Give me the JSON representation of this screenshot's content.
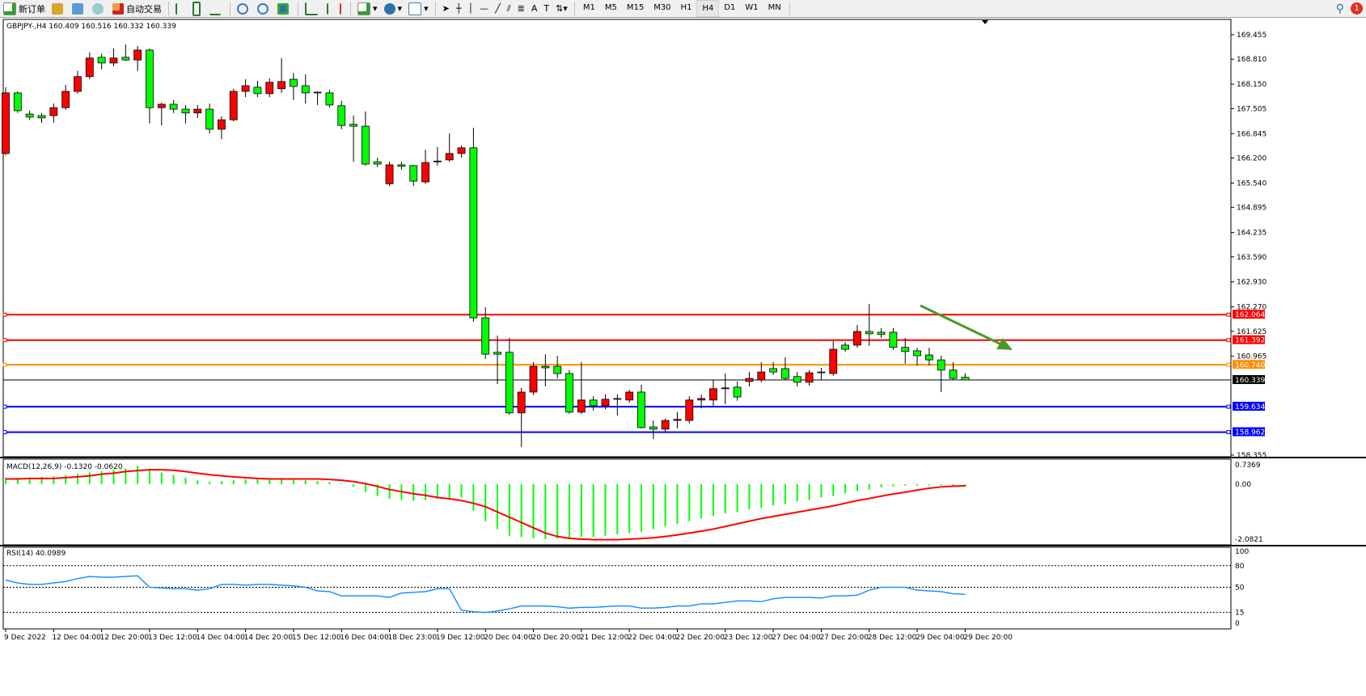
{
  "toolbar": {
    "new_order": "新订单",
    "auto_trading": "自动交易",
    "timeframes": [
      "M1",
      "M5",
      "M15",
      "M30",
      "H1",
      "H4",
      "D1",
      "W1",
      "MN"
    ],
    "active_timeframe": "H4",
    "notification_count": "1",
    "icons": [
      "new-order-icon",
      "market-watch-icon",
      "data-window-icon",
      "signals-icon",
      "auto-trading-icon",
      "bar-chart-icon",
      "candlestick-icon",
      "line-chart-icon",
      "zoom-in-icon",
      "zoom-out-icon",
      "tile-windows-icon",
      "auto-scroll-icon",
      "chart-shift-icon",
      "indicators-icon",
      "periods-icon",
      "templates-icon",
      "cursor-icon",
      "crosshair-icon",
      "vertical-line-icon",
      "horizontal-line-icon",
      "trendline-icon",
      "equidistant-channel-icon",
      "fibonacci-icon",
      "text-icon",
      "text-label-icon",
      "arrows-icon",
      "search-icon",
      "notification-icon"
    ]
  },
  "chart": {
    "header": "GBPJPY-,H4  160.409 160.516 160.332 160.339",
    "bull_color": "#ff0000",
    "bear_color": "#00ff00",
    "price_ticks": [
      "169.455",
      "168.810",
      "168.150",
      "167.505",
      "166.845",
      "166.200",
      "165.540",
      "164.895",
      "164.235",
      "163.590",
      "162.930",
      "162.270",
      "161.625",
      "160.965",
      "158.355"
    ],
    "price_range": [
      158.355,
      169.455
    ],
    "levels": [
      {
        "price": "162.064",
        "color": "#ff0000"
      },
      {
        "price": "161.392",
        "color": "#ff0000"
      },
      {
        "price": "160.740",
        "color": "#ff8c00"
      },
      {
        "price": "159.634",
        "color": "#0000ff"
      },
      {
        "price": "158.962",
        "color": "#0000ff"
      }
    ],
    "bid": {
      "price": "160.339",
      "color": "#000000"
    },
    "arrow_color": "#4a9a2a",
    "time_labels": [
      "9 Dec 2022",
      "12 Dec 04:00",
      "12 Dec 20:00",
      "13 Dec 12:00",
      "14 Dec 04:00",
      "14 Dec 20:00",
      "15 Dec 12:00",
      "16 Dec 04:00",
      "18 Dec 23:00",
      "19 Dec 12:00",
      "20 Dec 04:00",
      "20 Dec 20:00",
      "21 Dec 12:00",
      "22 Dec 04:00",
      "22 Dec 20:00",
      "23 Dec 12:00",
      "27 Dec 04:00",
      "27 Dec 20:00",
      "28 Dec 12:00",
      "29 Dec 04:00",
      "29 Dec 20:00"
    ]
  },
  "macd": {
    "label": "MACD(12,26,9) -0.1320 -0.0620",
    "ticks": [
      "0.7369",
      "0.00",
      "-2.0821"
    ],
    "range": [
      -2.0821,
      0.7369
    ],
    "hist_color": "#00ff00",
    "signal_color": "#ff0000"
  },
  "rsi": {
    "label": "RSI(14) 40.0989",
    "ticks": [
      "100",
      "80",
      "50",
      "15",
      "0"
    ],
    "levels": [
      80,
      50,
      15
    ],
    "color": "#1e90ff"
  },
  "chart_data": {
    "type": "candlestick",
    "ohlc": [
      [
        166.32,
        168.07,
        166.27,
        167.92
      ],
      [
        167.92,
        167.96,
        167.39,
        167.45
      ],
      [
        167.36,
        167.45,
        167.21,
        167.28
      ],
      [
        167.32,
        167.39,
        167.13,
        167.26
      ],
      [
        167.32,
        167.64,
        167.13,
        167.53
      ],
      [
        167.53,
        168.13,
        167.47,
        167.96
      ],
      [
        167.96,
        168.5,
        167.9,
        168.35
      ],
      [
        168.35,
        168.99,
        168.28,
        168.84
      ],
      [
        168.86,
        168.96,
        168.54,
        168.71
      ],
      [
        168.71,
        169.09,
        168.62,
        168.84
      ],
      [
        168.86,
        169.2,
        168.77,
        168.79
      ],
      [
        168.79,
        169.16,
        168.5,
        169.05
      ],
      [
        169.05,
        169.09,
        167.11,
        167.53
      ],
      [
        167.53,
        167.66,
        167.06,
        167.62
      ],
      [
        167.62,
        167.73,
        167.39,
        167.49
      ],
      [
        167.49,
        167.6,
        167.11,
        167.39
      ],
      [
        167.39,
        167.6,
        167.26,
        167.49
      ],
      [
        167.49,
        167.64,
        166.85,
        166.96
      ],
      [
        166.96,
        167.3,
        166.7,
        167.21
      ],
      [
        167.21,
        168.03,
        167.17,
        167.96
      ],
      [
        167.96,
        168.28,
        167.81,
        168.11
      ],
      [
        168.07,
        168.24,
        167.81,
        167.9
      ],
      [
        167.9,
        168.3,
        167.81,
        168.2
      ],
      [
        168.03,
        168.84,
        167.92,
        168.22
      ],
      [
        168.28,
        168.45,
        167.73,
        168.09
      ],
      [
        168.11,
        168.41,
        167.64,
        167.92
      ],
      [
        167.94,
        167.96,
        167.6,
        167.92
      ],
      [
        167.92,
        168.0,
        167.53,
        167.6
      ],
      [
        167.58,
        167.71,
        166.96,
        167.06
      ],
      [
        167.09,
        167.32,
        166.1,
        167.04
      ],
      [
        167.04,
        167.43,
        166.0,
        166.04
      ],
      [
        166.1,
        166.21,
        165.96,
        166.04
      ],
      [
        165.52,
        166.1,
        165.46,
        166.02
      ],
      [
        166.02,
        166.1,
        165.89,
        165.98
      ],
      [
        166.0,
        166.02,
        165.46,
        165.59
      ],
      [
        165.57,
        166.42,
        165.52,
        166.08
      ],
      [
        166.1,
        166.49,
        166.0,
        166.12
      ],
      [
        166.15,
        166.85,
        166.1,
        166.32
      ],
      [
        166.32,
        166.53,
        166.21,
        166.47
      ],
      [
        166.47,
        167.0,
        161.88,
        161.98
      ],
      [
        161.98,
        162.26,
        160.9,
        161.02
      ],
      [
        161.07,
        161.51,
        160.23,
        161.02
      ],
      [
        161.07,
        161.45,
        159.42,
        159.47
      ],
      [
        159.47,
        160.13,
        158.57,
        160.02
      ],
      [
        160.02,
        160.81,
        159.94,
        160.7
      ],
      [
        160.7,
        161.02,
        160.17,
        160.66
      ],
      [
        160.7,
        160.98,
        160.38,
        160.51
      ],
      [
        160.51,
        160.6,
        159.44,
        159.49
      ],
      [
        159.49,
        160.81,
        159.44,
        159.81
      ],
      [
        159.81,
        159.91,
        159.53,
        159.66
      ],
      [
        159.66,
        159.96,
        159.57,
        159.83
      ],
      [
        159.85,
        159.96,
        159.4,
        159.83
      ],
      [
        159.81,
        160.08,
        159.74,
        160.02
      ],
      [
        160.02,
        160.21,
        159.06,
        159.08
      ],
      [
        159.1,
        159.27,
        158.78,
        159.04
      ],
      [
        159.04,
        159.32,
        158.97,
        159.27
      ],
      [
        159.27,
        159.49,
        159.06,
        159.3
      ],
      [
        159.27,
        159.91,
        159.19,
        159.81
      ],
      [
        159.81,
        159.96,
        159.59,
        159.85
      ],
      [
        159.81,
        160.34,
        159.66,
        160.11
      ],
      [
        160.11,
        160.51,
        159.7,
        160.13
      ],
      [
        160.15,
        160.3,
        159.79,
        159.89
      ],
      [
        160.3,
        160.55,
        160.17,
        160.38
      ],
      [
        160.34,
        160.81,
        160.28,
        160.55
      ],
      [
        160.64,
        160.81,
        160.47,
        160.55
      ],
      [
        160.64,
        160.94,
        160.34,
        160.38
      ],
      [
        160.43,
        160.55,
        160.17,
        160.28
      ],
      [
        160.28,
        160.6,
        160.19,
        160.53
      ],
      [
        160.55,
        160.66,
        160.34,
        160.53
      ],
      [
        160.51,
        161.37,
        160.45,
        161.15
      ],
      [
        161.26,
        161.34,
        161.09,
        161.15
      ],
      [
        161.26,
        161.79,
        161.19,
        161.62
      ],
      [
        161.62,
        162.35,
        161.24,
        161.56
      ],
      [
        161.6,
        161.71,
        161.45,
        161.54
      ],
      [
        161.6,
        161.71,
        161.13,
        161.2
      ],
      [
        161.2,
        161.45,
        160.77,
        161.09
      ],
      [
        161.11,
        161.19,
        160.72,
        160.98
      ],
      [
        161.0,
        161.19,
        160.72,
        160.87
      ],
      [
        160.87,
        160.98,
        160.02,
        160.6
      ],
      [
        160.6,
        160.81,
        160.34,
        160.38
      ],
      [
        160.409,
        160.516,
        160.332,
        160.339
      ]
    ],
    "macd_hist": [
      0.25,
      0.25,
      0.25,
      0.28,
      0.3,
      0.35,
      0.4,
      0.45,
      0.5,
      0.55,
      0.6,
      0.7,
      0.55,
      0.45,
      0.35,
      0.25,
      0.15,
      0.1,
      0.12,
      0.15,
      0.18,
      0.2,
      0.2,
      0.2,
      0.18,
      0.15,
      0.12,
      0.08,
      0.02,
      -0.1,
      -0.3,
      -0.45,
      -0.55,
      -0.6,
      -0.62,
      -0.6,
      -0.55,
      -0.55,
      -0.5,
      -1.0,
      -1.4,
      -1.7,
      -1.95,
      -2.0,
      -2.05,
      -2.08,
      -2.05,
      -2.05,
      -2.0,
      -2.0,
      -1.95,
      -1.9,
      -1.85,
      -1.8,
      -1.7,
      -1.6,
      -1.5,
      -1.4,
      -1.3,
      -1.2,
      -1.1,
      -1.05,
      -0.95,
      -0.9,
      -0.8,
      -0.75,
      -0.65,
      -0.6,
      -0.5,
      -0.45,
      -0.35,
      -0.25,
      -0.2,
      -0.12,
      -0.08,
      -0.05,
      -0.05,
      -0.04,
      -0.04,
      -0.06,
      -0.1
    ],
    "macd_signal": [
      0.2,
      0.2,
      0.22,
      0.22,
      0.22,
      0.25,
      0.28,
      0.32,
      0.38,
      0.42,
      0.48,
      0.52,
      0.55,
      0.55,
      0.53,
      0.48,
      0.42,
      0.36,
      0.32,
      0.28,
      0.25,
      0.22,
      0.2,
      0.2,
      0.2,
      0.2,
      0.2,
      0.18,
      0.15,
      0.1,
      0.02,
      -0.08,
      -0.2,
      -0.28,
      -0.36,
      -0.42,
      -0.5,
      -0.55,
      -0.62,
      -0.72,
      -0.85,
      -1.05,
      -1.25,
      -1.45,
      -1.65,
      -1.85,
      -1.98,
      -2.05,
      -2.08,
      -2.1,
      -2.1,
      -2.1,
      -2.08,
      -2.06,
      -2.03,
      -1.98,
      -1.92,
      -1.85,
      -1.78,
      -1.7,
      -1.6,
      -1.5,
      -1.4,
      -1.3,
      -1.22,
      -1.14,
      -1.06,
      -0.98,
      -0.9,
      -0.82,
      -0.72,
      -0.62,
      -0.54,
      -0.45,
      -0.37,
      -0.3,
      -0.22,
      -0.15,
      -0.1,
      -0.07,
      -0.06
    ],
    "rsi": [
      60,
      56,
      54,
      54,
      56,
      58,
      62,
      65,
      64,
      64,
      65,
      66,
      50,
      49,
      48,
      48,
      46,
      48,
      54,
      54,
      53,
      54,
      54,
      53,
      52,
      50,
      45,
      44,
      38,
      38,
      38,
      38,
      36,
      42,
      43,
      44,
      48,
      48,
      18,
      16,
      15,
      17,
      20,
      24,
      24,
      24,
      23,
      21,
      22,
      22,
      23,
      24,
      24,
      21,
      21,
      22,
      24,
      24,
      27,
      27,
      29,
      31,
      31,
      30,
      34,
      36,
      36,
      36,
      35,
      38,
      38,
      39,
      46,
      50,
      50,
      50,
      46,
      45,
      44,
      41,
      40.1
    ]
  }
}
